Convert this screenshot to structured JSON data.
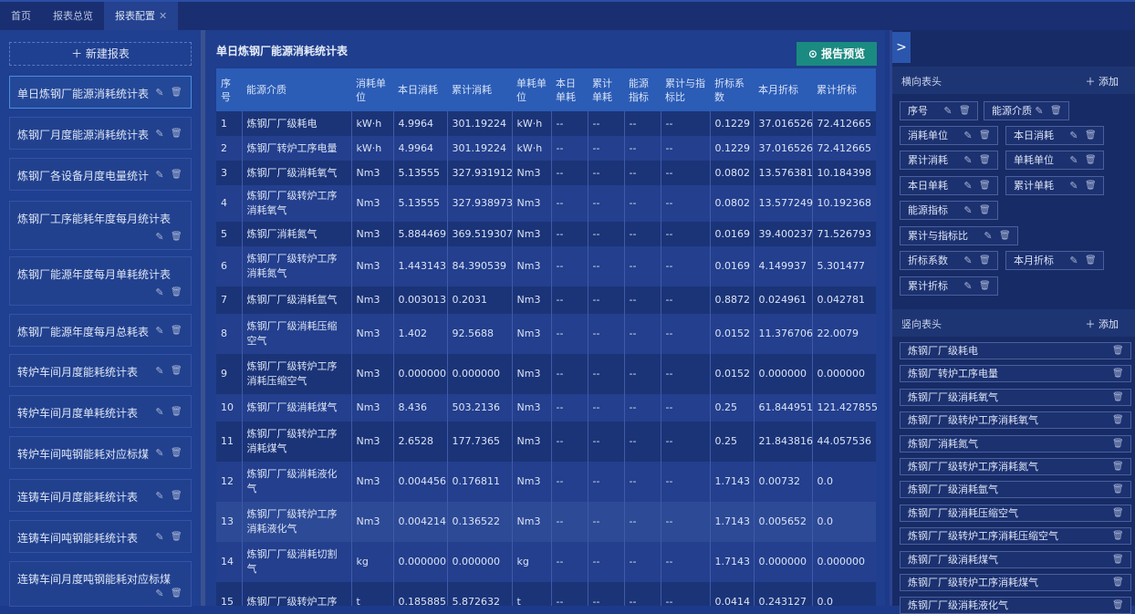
{
  "tabs": [
    {
      "label": "首页"
    },
    {
      "label": "报表总览"
    },
    {
      "label": "报表配置",
      "closable": true,
      "active": true
    }
  ],
  "left": {
    "new_label": "新建报表",
    "items": [
      "单日炼钢厂能源消耗统计表",
      "炼钢厂月度能源消耗统计表",
      "炼钢厂各设备月度电量统计",
      "炼钢厂工序能耗年度每月统计表",
      "炼钢厂能源年度每月单耗统计表",
      "炼钢厂能源年度每月总耗表",
      "转炉车间月度能耗统计表",
      "转炉车间月度单耗统计表",
      "转炉车间吨钢能耗对应标煤",
      "连铸车间月度能耗统计表",
      "连铸车间吨钢能耗统计表",
      "连铸车间月度吨钢能耗对应标煤"
    ],
    "selected": 0
  },
  "center": {
    "title": "单日炼钢厂能源消耗统计表",
    "preview_label": "报告预览",
    "columns": [
      "序号",
      "能源介质",
      "消耗单位",
      "本日消耗",
      "累计消耗",
      "单耗单位",
      "本日单耗",
      "累计单耗",
      "能源指标",
      "累计与指标比",
      "折标系数",
      "本月折标",
      "累计折标"
    ],
    "rows": [
      [
        "1",
        "炼钢厂厂级耗电",
        "kW·h",
        "4.9964",
        "301.19224",
        "kW·h",
        "--",
        "--",
        "--",
        "--",
        "0.1229",
        "37.016526",
        "72.412665"
      ],
      [
        "2",
        "炼钢厂转炉工序电量",
        "kW·h",
        "4.9964",
        "301.19224",
        "kW·h",
        "--",
        "--",
        "--",
        "--",
        "0.1229",
        "37.016526",
        "72.412665"
      ],
      [
        "3",
        "炼钢厂厂级消耗氧气",
        "Nm3",
        "5.13555",
        "327.931912",
        "Nm3",
        "--",
        "--",
        "--",
        "--",
        "0.0802",
        "13.576381",
        "10.184398"
      ],
      [
        "4",
        "炼钢厂厂级转炉工序消耗氧气",
        "Nm3",
        "5.13555",
        "327.938973",
        "Nm3",
        "--",
        "--",
        "--",
        "--",
        "0.0802",
        "13.577249",
        "10.192368"
      ],
      [
        "5",
        "炼钢厂消耗氮气",
        "Nm3",
        "5.884469",
        "369.519307",
        "Nm3",
        "--",
        "--",
        "--",
        "--",
        "0.0169",
        "39.400237",
        "71.526793"
      ],
      [
        "6",
        "炼钢厂厂级转炉工序消耗氮气",
        "Nm3",
        "1.443143",
        "84.390539",
        "Nm3",
        "--",
        "--",
        "--",
        "--",
        "0.0169",
        "4.149937",
        "5.301477"
      ],
      [
        "7",
        "炼钢厂厂级消耗氩气",
        "Nm3",
        "0.003013",
        "0.2031",
        "Nm3",
        "--",
        "--",
        "--",
        "--",
        "0.8872",
        "0.024961",
        "0.042781"
      ],
      [
        "8",
        "炼钢厂厂级消耗压缩空气",
        "Nm3",
        "1.402",
        "92.5688",
        "Nm3",
        "--",
        "--",
        "--",
        "--",
        "0.0152",
        "11.376706",
        "22.0079"
      ],
      [
        "9",
        "炼钢厂厂级转炉工序消耗压缩空气",
        "Nm3",
        "0.000000",
        "0.000000",
        "Nm3",
        "--",
        "--",
        "--",
        "--",
        "0.0152",
        "0.000000",
        "0.000000"
      ],
      [
        "10",
        "炼钢厂厂级消耗煤气",
        "Nm3",
        "8.436",
        "503.2136",
        "Nm3",
        "--",
        "--",
        "--",
        "--",
        "0.25",
        "61.844951",
        "121.427855"
      ],
      [
        "11",
        "炼钢厂厂级转炉工序消耗煤气",
        "Nm3",
        "2.6528",
        "177.7365",
        "Nm3",
        "--",
        "--",
        "--",
        "--",
        "0.25",
        "21.843816",
        "44.057536"
      ],
      [
        "12",
        "炼钢厂厂级消耗液化气",
        "Nm3",
        "0.004456",
        "0.176811",
        "Nm3",
        "--",
        "--",
        "--",
        "--",
        "1.7143",
        "0.00732",
        "0.0"
      ],
      [
        "13",
        "炼钢厂厂级转炉工序消耗液化气",
        "Nm3",
        "0.004214",
        "0.136522",
        "Nm3",
        "--",
        "--",
        "--",
        "--",
        "1.7143",
        "0.005652",
        "0.0"
      ],
      [
        "14",
        "炼钢厂厂级消耗切割气",
        "kg",
        "0.000000",
        "0.000000",
        "kg",
        "--",
        "--",
        "--",
        "--",
        "1.7143",
        "0.000000",
        "0.000000"
      ],
      [
        "15",
        "炼钢厂厂级转炉工序",
        "t",
        "0.185885",
        "5.872632",
        "t",
        "--",
        "--",
        "--",
        "--",
        "0.0414",
        "0.243127",
        "0.0"
      ]
    ]
  },
  "right": {
    "horizontal": {
      "label": "横向表头",
      "add_label": "添加",
      "chips": [
        "序号",
        "能源介质",
        "消耗单位",
        "本日消耗",
        "累计消耗",
        "单耗单位",
        "本日单耗",
        "累计单耗",
        "能源指标",
        "累计与指标比",
        "折标系数",
        "本月折标",
        "累计折标"
      ]
    },
    "vertical": {
      "label": "竖向表头",
      "add_label": "添加",
      "items": [
        "炼钢厂厂级耗电",
        "炼钢厂转炉工序电量",
        "炼钢厂厂级消耗氧气",
        "炼钢厂厂级转炉工序消耗氧气",
        "炼钢厂消耗氮气",
        "炼钢厂厂级转炉工序消耗氮气",
        "炼钢厂厂级消耗氩气",
        "炼钢厂厂级消耗压缩空气",
        "炼钢厂厂级转炉工序消耗压缩空气",
        "炼钢厂厂级消耗煤气",
        "炼钢厂厂级转炉工序消耗煤气",
        "炼钢厂厂级消耗液化气"
      ]
    }
  },
  "colors": {
    "accent": "#2b5cb6",
    "preview_button": "#1b8a80",
    "selected_border": "#4a8de0"
  },
  "icons": {
    "edit": "pencil-icon",
    "delete": "trash-icon",
    "add": "plus-icon",
    "collapse": "chevron-right-icon",
    "preview": "play-circle-icon",
    "close": "close-icon"
  }
}
